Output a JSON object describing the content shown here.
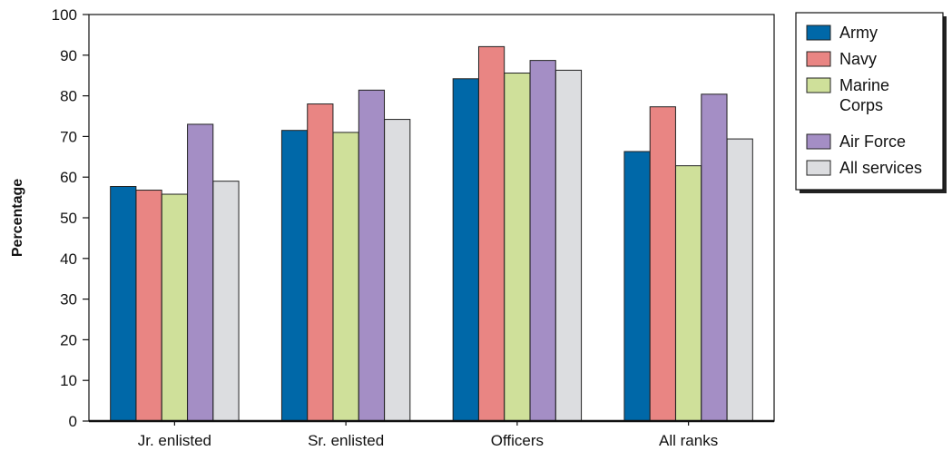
{
  "chart_data": {
    "type": "bar",
    "ylabel": "Percentage",
    "xlabel": "",
    "ylim": [
      0,
      100
    ],
    "yticks": [
      0,
      10,
      20,
      30,
      40,
      50,
      60,
      70,
      80,
      90,
      100
    ],
    "categories": [
      "Jr. enlisted",
      "Sr. enlisted",
      "Officers",
      "All ranks"
    ],
    "series": [
      {
        "name": "Army",
        "color": "#0068a8",
        "values": [
          57.7,
          71.5,
          84.2,
          66.3
        ]
      },
      {
        "name": "Navy",
        "color": "#e98583",
        "values": [
          56.8,
          78.0,
          92.1,
          77.3
        ]
      },
      {
        "name": "Marine Corps",
        "color": "#cfe09a",
        "values": [
          55.8,
          71.0,
          85.6,
          62.8
        ]
      },
      {
        "name": "Air Force",
        "color": "#a48ec5",
        "values": [
          73.0,
          81.4,
          88.7,
          80.4
        ]
      },
      {
        "name": "All services",
        "color": "#dcdde0",
        "values": [
          59.0,
          74.2,
          86.3,
          69.4
        ]
      }
    ],
    "grid": false,
    "legend_position": "right"
  }
}
